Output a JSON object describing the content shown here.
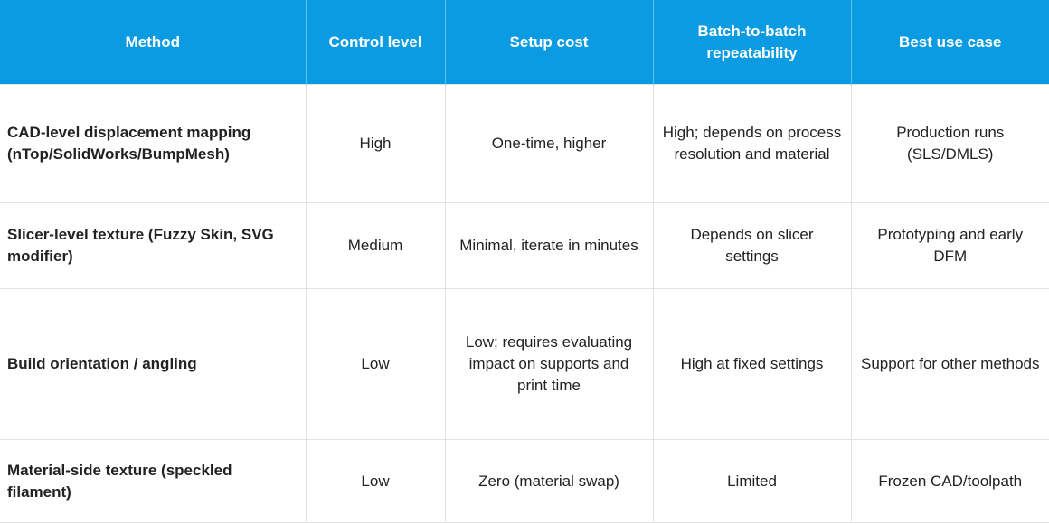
{
  "table": {
    "header": [
      "Method",
      "Control level",
      "Setup cost",
      "Batch-to-batch repeatability",
      "Best use case"
    ],
    "rows": [
      [
        "CAD-level displacement mapping (nTop/SolidWorks/BumpMesh)",
        "High",
        "One-time, higher",
        "High; depends on process resolution and material",
        "Production runs (SLS/DMLS)"
      ],
      [
        "Slicer-level texture (Fuzzy Skin, SVG modifier)",
        "Medium",
        "Minimal, iterate in minutes",
        "Depends on slicer settings",
        "Prototyping and early DFM"
      ],
      [
        "Build orientation / angling",
        "Low",
        "Low; requires evaluating impact on supports and print time",
        "High at fixed settings",
        "Support for other methods"
      ],
      [
        "Material-side texture (speckled filament)",
        "Low",
        "Zero (material swap)",
        "Limited",
        "Frozen CAD/toolpath"
      ]
    ]
  }
}
